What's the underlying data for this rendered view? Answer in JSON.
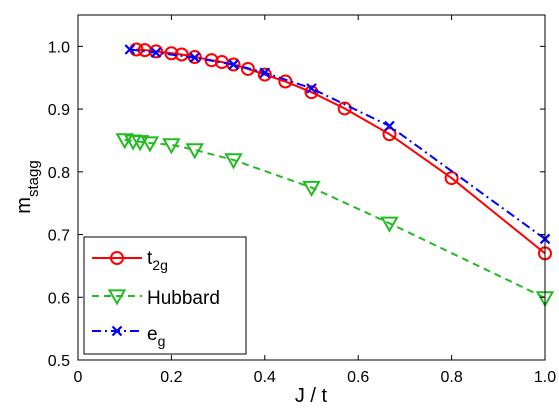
{
  "chart_data": {
    "type": "line",
    "xlabel": "J / t",
    "ylabel": "m",
    "ylabel_sub": "stagg",
    "xlim": [
      0,
      1.0
    ],
    "ylim": [
      0.5,
      1.05
    ],
    "xticks": [
      "0",
      "0.2",
      "0.4",
      "0.6",
      "0.8",
      "1.0"
    ],
    "xtick_values": [
      0,
      0.2,
      0.4,
      0.6,
      0.8,
      1.0
    ],
    "yticks": [
      "0.5",
      "0.6",
      "0.7",
      "0.8",
      "0.9",
      "1.0"
    ],
    "ytick_values": [
      0.5,
      0.6,
      0.7,
      0.8,
      0.9,
      1.0
    ],
    "grid": false,
    "legend_position": "bottom-left",
    "series": [
      {
        "name": "t",
        "name_sub": "2g",
        "color": "#ff0000",
        "line_style": "solid",
        "marker": "circle",
        "x": [
          0.125,
          0.143,
          0.167,
          0.2,
          0.222,
          0.25,
          0.286,
          0.308,
          0.333,
          0.364,
          0.4,
          0.444,
          0.5,
          0.571,
          0.667,
          0.8,
          1.0
        ],
        "y": [
          0.995,
          0.994,
          0.992,
          0.989,
          0.987,
          0.983,
          0.978,
          0.975,
          0.971,
          0.964,
          0.955,
          0.944,
          0.927,
          0.901,
          0.86,
          0.79,
          0.67
        ]
      },
      {
        "name": "Hubbard",
        "color": "#22bb22",
        "line_style": "dashed",
        "marker": "triangle-down",
        "x": [
          0.1,
          0.118,
          0.133,
          0.154,
          0.2,
          0.25,
          0.333,
          0.5,
          0.667,
          1.0
        ],
        "y": [
          0.851,
          0.849,
          0.848,
          0.846,
          0.843,
          0.835,
          0.819,
          0.775,
          0.718,
          0.599
        ]
      },
      {
        "name": "e",
        "name_sub": "g",
        "color": "#0000ff",
        "line_style": "dash-dot",
        "marker": "x",
        "x": [
          0.111,
          0.167,
          0.25,
          0.333,
          0.4,
          0.5,
          0.667,
          1.0
        ],
        "y": [
          0.995,
          0.99,
          0.982,
          0.971,
          0.958,
          0.933,
          0.873,
          0.693
        ]
      }
    ]
  }
}
